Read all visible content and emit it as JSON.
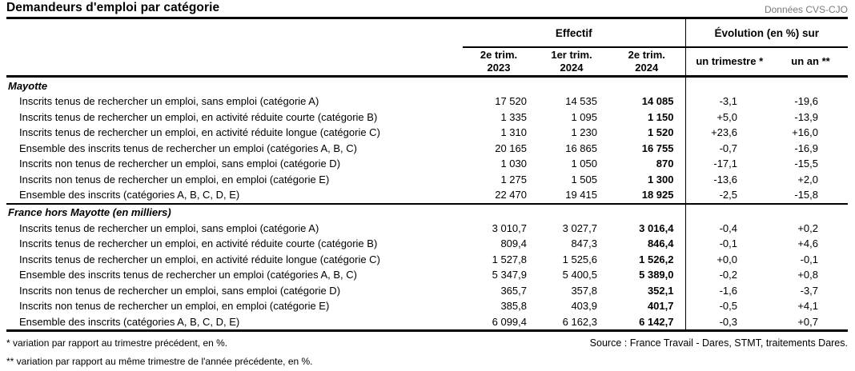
{
  "header": {
    "title": "Demandeurs d'emploi par catégorie",
    "data_note": "Données CVS-CJO"
  },
  "table": {
    "group_headers": {
      "effectif": "Effectif",
      "evolution": "Évolution (en %) sur"
    },
    "period_columns": [
      {
        "line1": "2e trim.",
        "line2": "2023"
      },
      {
        "line1": "1er trim.",
        "line2": "2024"
      },
      {
        "line1": "2e trim.",
        "line2": "2024"
      }
    ],
    "evolution_columns": [
      {
        "label": "un trimestre *"
      },
      {
        "label": "un an **"
      }
    ],
    "sections": [
      {
        "label": "Mayotte",
        "rows": [
          {
            "label": "Inscrits tenus de rechercher un emploi, sans emploi (catégorie A)",
            "values": [
              "17 520",
              "14 535",
              "14 085",
              "-3,1",
              "-19,6"
            ]
          },
          {
            "label": "Inscrits tenus de rechercher un emploi, en activité réduite courte (catégorie B)",
            "values": [
              "1 335",
              "1 095",
              "1 150",
              "+5,0",
              "-13,9"
            ]
          },
          {
            "label": "Inscrits tenus de rechercher un emploi, en activité réduite longue (catégorie C)",
            "values": [
              "1 310",
              "1 230",
              "1 520",
              "+23,6",
              "+16,0"
            ]
          },
          {
            "label": "Ensemble des inscrits tenus de rechercher un emploi (catégories A, B, C)",
            "values": [
              "20 165",
              "16 865",
              "16 755",
              "-0,7",
              "-16,9"
            ]
          },
          {
            "label": "Inscrits non tenus de rechercher un emploi, sans emploi (catégorie D)",
            "values": [
              "1 030",
              "1 050",
              "870",
              "-17,1",
              "-15,5"
            ]
          },
          {
            "label": "Inscrits non tenus de rechercher un emploi, en emploi (catégorie E)",
            "values": [
              "1 275",
              "1 505",
              "1 300",
              "-13,6",
              "+2,0"
            ]
          },
          {
            "label": "Ensemble des inscrits (catégories A, B, C, D, E)",
            "values": [
              "22 470",
              "19 415",
              "18 925",
              "-2,5",
              "-15,8"
            ]
          }
        ]
      },
      {
        "label": "France hors Mayotte (en milliers)",
        "rows": [
          {
            "label": "Inscrits tenus de rechercher un emploi, sans emploi (catégorie A)",
            "values": [
              "3 010,7",
              "3 027,7",
              "3 016,4",
              "-0,4",
              "+0,2"
            ]
          },
          {
            "label": "Inscrits tenus de rechercher un emploi, en activité réduite courte (catégorie B)",
            "values": [
              "809,4",
              "847,3",
              "846,4",
              "-0,1",
              "+4,6"
            ]
          },
          {
            "label": "Inscrits tenus de rechercher un emploi, en activité réduite longue (catégorie C)",
            "values": [
              "1 527,8",
              "1 525,6",
              "1 526,2",
              "+0,0",
              "-0,1"
            ]
          },
          {
            "label": "Ensemble des inscrits tenus de rechercher un emploi (catégories A, B, C)",
            "values": [
              "5 347,9",
              "5 400,5",
              "5 389,0",
              "-0,2",
              "+0,8"
            ]
          },
          {
            "label": "Inscrits non tenus de rechercher un emploi, sans emploi (catégorie D)",
            "values": [
              "365,7",
              "357,8",
              "352,1",
              "-1,6",
              "-3,7"
            ]
          },
          {
            "label": "Inscrits non tenus de rechercher un emploi, en emploi (catégorie E)",
            "values": [
              "385,8",
              "403,9",
              "401,7",
              "-0,5",
              "+4,1"
            ]
          },
          {
            "label": "Ensemble des inscrits (catégories A, B, C, D, E)",
            "values": [
              "6 099,4",
              "6 162,3",
              "6 142,7",
              "-0,3",
              "+0,7"
            ]
          }
        ]
      }
    ]
  },
  "footer": {
    "note_quarter": "* variation par rapport au trimestre précédent, en %.",
    "note_year": "** variation par rapport au même trimestre de l'année précédente, en %.",
    "source": "Source : France Travail - Dares, STMT, traitements Dares."
  },
  "colors": {
    "text": "#000000",
    "muted_note": "#7b7b7b",
    "rule": "#000000"
  }
}
